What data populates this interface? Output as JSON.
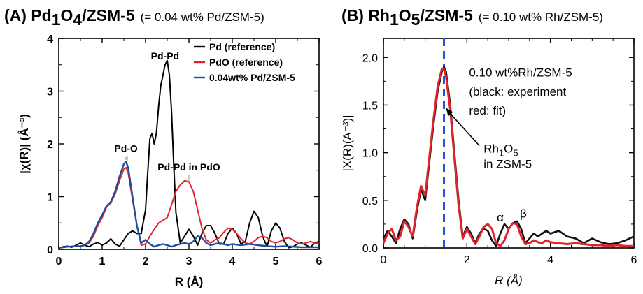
{
  "chart_data": [
    {
      "type": "line",
      "panel": "(A)",
      "title_parts": {
        "prefix": "(A) Pd",
        "sub1": "1",
        "mid": "O",
        "sub2": "4",
        "suffix": "/ZSM-5",
        "note": "(= 0.04 wt% Pd/ZSM-5)"
      },
      "xlabel": "R (Å)",
      "ylabel": "|χ(R)| (Å⁻³)",
      "xlim": [
        0,
        6
      ],
      "ylim": [
        0,
        4
      ],
      "xticks": [
        0,
        1,
        2,
        3,
        4,
        5,
        6
      ],
      "yticks": [
        0,
        1,
        2,
        3,
        4
      ],
      "legend_position": "top-right",
      "series": [
        {
          "name": "Pd (reference)",
          "color": "#000000",
          "x": [
            0.0,
            0.1,
            0.2,
            0.3,
            0.4,
            0.5,
            0.6,
            0.7,
            0.8,
            0.9,
            1.0,
            1.1,
            1.2,
            1.3,
            1.4,
            1.5,
            1.6,
            1.7,
            1.8,
            1.9,
            2.0,
            2.05,
            2.1,
            2.15,
            2.2,
            2.25,
            2.3,
            2.35,
            2.4,
            2.45,
            2.5,
            2.55,
            2.6,
            2.65,
            2.7,
            2.8,
            2.9,
            3.0,
            3.1,
            3.2,
            3.3,
            3.4,
            3.5,
            3.6,
            3.7,
            3.8,
            3.9,
            4.0,
            4.1,
            4.2,
            4.3,
            4.4,
            4.5,
            4.6,
            4.7,
            4.8,
            4.9,
            5.0,
            5.1,
            5.2,
            5.3,
            5.4,
            5.5,
            5.6,
            5.7,
            5.8,
            5.9,
            6.0
          ],
          "y": [
            0.02,
            0.05,
            0.06,
            0.04,
            0.08,
            0.12,
            0.08,
            0.05,
            0.1,
            0.13,
            0.08,
            0.12,
            0.2,
            0.1,
            0.06,
            0.18,
            0.3,
            0.35,
            0.3,
            0.3,
            0.75,
            1.45,
            2.1,
            2.2,
            2.0,
            2.2,
            2.7,
            3.1,
            3.3,
            3.5,
            3.58,
            3.3,
            2.6,
            1.6,
            0.7,
            0.12,
            0.25,
            0.38,
            0.25,
            0.08,
            0.3,
            0.45,
            0.45,
            0.3,
            0.1,
            0.1,
            0.3,
            0.4,
            0.3,
            0.1,
            0.15,
            0.5,
            0.72,
            0.6,
            0.25,
            0.05,
            0.35,
            0.5,
            0.4,
            0.15,
            0.03,
            0.05,
            0.1,
            0.12,
            0.08,
            0.04,
            0.12,
            0.15
          ]
        },
        {
          "name": "PdO (reference)",
          "color": "#e0242b",
          "x": [
            0.0,
            0.1,
            0.2,
            0.3,
            0.4,
            0.5,
            0.6,
            0.7,
            0.8,
            0.9,
            1.0,
            1.1,
            1.2,
            1.3,
            1.4,
            1.5,
            1.55,
            1.6,
            1.7,
            1.8,
            1.9,
            2.0,
            2.1,
            2.2,
            2.3,
            2.4,
            2.5,
            2.6,
            2.7,
            2.8,
            2.9,
            3.0,
            3.1,
            3.2,
            3.3,
            3.4,
            3.5,
            3.6,
            3.7,
            3.8,
            3.9,
            4.0,
            4.1,
            4.2,
            4.3,
            4.4,
            4.5,
            4.6,
            4.7,
            4.8,
            4.9,
            5.0,
            5.1,
            5.2,
            5.3,
            5.4,
            5.5,
            5.6,
            5.7,
            5.8,
            5.9,
            6.0
          ],
          "y": [
            0.03,
            0.04,
            0.05,
            0.06,
            0.06,
            0.06,
            0.08,
            0.12,
            0.25,
            0.45,
            0.6,
            0.8,
            0.88,
            1.05,
            1.3,
            1.52,
            1.55,
            1.45,
            0.95,
            0.45,
            0.08,
            0.1,
            0.25,
            0.38,
            0.5,
            0.55,
            0.6,
            0.85,
            1.1,
            1.22,
            1.3,
            1.28,
            1.1,
            0.75,
            0.4,
            0.18,
            0.12,
            0.18,
            0.22,
            0.32,
            0.4,
            0.38,
            0.3,
            0.2,
            0.12,
            0.1,
            0.15,
            0.22,
            0.25,
            0.22,
            0.15,
            0.12,
            0.15,
            0.2,
            0.22,
            0.18,
            0.12,
            0.1,
            0.12,
            0.15,
            0.12,
            0.1
          ]
        },
        {
          "name": "0.04wt% Pd/ZSM-5",
          "color": "#1f4e9e",
          "x": [
            0.0,
            0.1,
            0.2,
            0.3,
            0.4,
            0.5,
            0.6,
            0.7,
            0.8,
            0.9,
            1.0,
            1.1,
            1.2,
            1.3,
            1.4,
            1.5,
            1.55,
            1.6,
            1.7,
            1.8,
            1.9,
            2.0,
            2.1,
            2.2,
            2.3,
            2.4,
            2.5,
            2.6,
            2.7,
            2.8,
            2.9,
            3.0,
            3.1,
            3.2,
            3.3,
            3.4,
            3.5,
            3.6,
            3.7,
            3.8,
            3.9,
            4.0,
            4.2,
            4.4,
            4.6,
            4.8,
            5.0,
            5.2,
            5.4,
            5.6,
            5.8,
            6.0
          ],
          "y": [
            0.03,
            0.04,
            0.05,
            0.05,
            0.06,
            0.06,
            0.08,
            0.15,
            0.3,
            0.5,
            0.65,
            0.82,
            0.9,
            1.1,
            1.38,
            1.62,
            1.66,
            1.55,
            1.0,
            0.45,
            0.12,
            0.18,
            0.1,
            0.05,
            0.08,
            0.1,
            0.08,
            0.05,
            0.08,
            0.1,
            0.12,
            0.1,
            0.15,
            0.25,
            0.22,
            0.12,
            0.08,
            0.1,
            0.12,
            0.1,
            0.08,
            0.1,
            0.08,
            0.1,
            0.08,
            0.06,
            0.05,
            0.06,
            0.05,
            0.04,
            0.04,
            0.04
          ]
        }
      ],
      "annotations": [
        {
          "text": "Pd-O",
          "x": 1.55,
          "y": 1.85
        },
        {
          "text": "Pd-Pd",
          "x": 2.45,
          "y": 3.6
        },
        {
          "text": "Pd-Pd in PdO",
          "x": 3.0,
          "y": 1.5
        }
      ]
    },
    {
      "type": "line",
      "panel": "(B)",
      "title_parts": {
        "prefix": "(B) Rh",
        "sub1": "1",
        "mid": "O",
        "sub2": "5",
        "suffix": "/ZSM-5",
        "note": "(= 0.10 wt% Rh/ZSM-5)"
      },
      "xlabel": "R (Å)",
      "ylabel": "|X(R)(A⁻³)|",
      "xlim": [
        0,
        6
      ],
      "ylim": [
        0,
        2.2
      ],
      "xticks": [
        0,
        2,
        4,
        6
      ],
      "yticks": [
        0.0,
        0.5,
        1.0,
        1.5,
        2.0
      ],
      "vline_x": 1.45,
      "series": [
        {
          "name": "black: experiment",
          "color": "#111111",
          "x": [
            0.0,
            0.1,
            0.2,
            0.3,
            0.4,
            0.5,
            0.6,
            0.7,
            0.8,
            0.9,
            1.0,
            1.1,
            1.2,
            1.3,
            1.4,
            1.45,
            1.5,
            1.6,
            1.7,
            1.8,
            1.9,
            2.0,
            2.1,
            2.2,
            2.3,
            2.4,
            2.5,
            2.6,
            2.7,
            2.8,
            2.9,
            3.0,
            3.1,
            3.2,
            3.3,
            3.4,
            3.5,
            3.6,
            3.7,
            3.8,
            3.9,
            4.0,
            4.2,
            4.4,
            4.6,
            4.8,
            5.0,
            5.2,
            5.4,
            5.6,
            5.8,
            6.0
          ],
          "y": [
            0.1,
            0.18,
            0.12,
            0.05,
            0.2,
            0.3,
            0.25,
            0.1,
            0.38,
            0.62,
            0.5,
            0.9,
            1.3,
            1.65,
            1.85,
            1.9,
            1.85,
            1.5,
            1.0,
            0.5,
            0.12,
            0.22,
            0.15,
            0.05,
            0.15,
            0.2,
            0.18,
            0.08,
            0.02,
            0.15,
            0.25,
            0.2,
            0.26,
            0.28,
            0.2,
            0.05,
            0.1,
            0.15,
            0.12,
            0.15,
            0.18,
            0.15,
            0.18,
            0.12,
            0.1,
            0.05,
            0.1,
            0.06,
            0.04,
            0.05,
            0.08,
            0.12
          ]
        },
        {
          "name": "red: fit",
          "color": "#e0242b",
          "x": [
            0.0,
            0.1,
            0.2,
            0.3,
            0.4,
            0.5,
            0.6,
            0.7,
            0.8,
            0.9,
            1.0,
            1.1,
            1.2,
            1.3,
            1.4,
            1.45,
            1.5,
            1.6,
            1.7,
            1.8,
            1.9,
            2.0,
            2.1,
            2.2,
            2.3,
            2.4,
            2.5,
            2.6,
            2.7,
            2.8,
            2.9,
            3.0,
            3.1,
            3.2,
            3.3,
            3.4,
            3.5,
            3.6,
            3.7,
            3.8,
            3.9,
            4.0,
            4.2,
            4.4,
            4.6,
            4.8,
            5.0,
            5.2,
            5.4,
            5.6,
            5.8,
            6.0
          ],
          "y": [
            0.05,
            0.15,
            0.2,
            0.08,
            0.12,
            0.28,
            0.22,
            0.12,
            0.42,
            0.65,
            0.55,
            0.95,
            1.35,
            1.7,
            1.88,
            1.88,
            1.8,
            1.45,
            0.95,
            0.45,
            0.1,
            0.2,
            0.12,
            0.04,
            0.12,
            0.22,
            0.25,
            0.2,
            0.05,
            0.02,
            0.08,
            0.2,
            0.26,
            0.25,
            0.12,
            0.04,
            0.05,
            0.08,
            0.06,
            0.05,
            0.08,
            0.06,
            0.05,
            0.04,
            0.05,
            0.04,
            0.03,
            0.03,
            0.02,
            0.03,
            0.02,
            0.02
          ]
        }
      ],
      "annotations": [
        {
          "text": "0.10 wt%Rh/ZSM-5",
          "x": 2.05,
          "y": 1.8
        },
        {
          "text": "(black: experiment",
          "x": 2.05,
          "y": 1.6
        },
        {
          "text": "red: fit)",
          "x": 2.05,
          "y": 1.4
        },
        {
          "text": "α",
          "x": 2.8,
          "y": 0.28
        },
        {
          "text": "β",
          "x": 3.35,
          "y": 0.32
        }
      ],
      "arrow_label": {
        "prefix": "Rh",
        "sub1": "1",
        "mid": "O",
        "sub2": "5",
        "line2": "in ZSM-5"
      }
    }
  ]
}
